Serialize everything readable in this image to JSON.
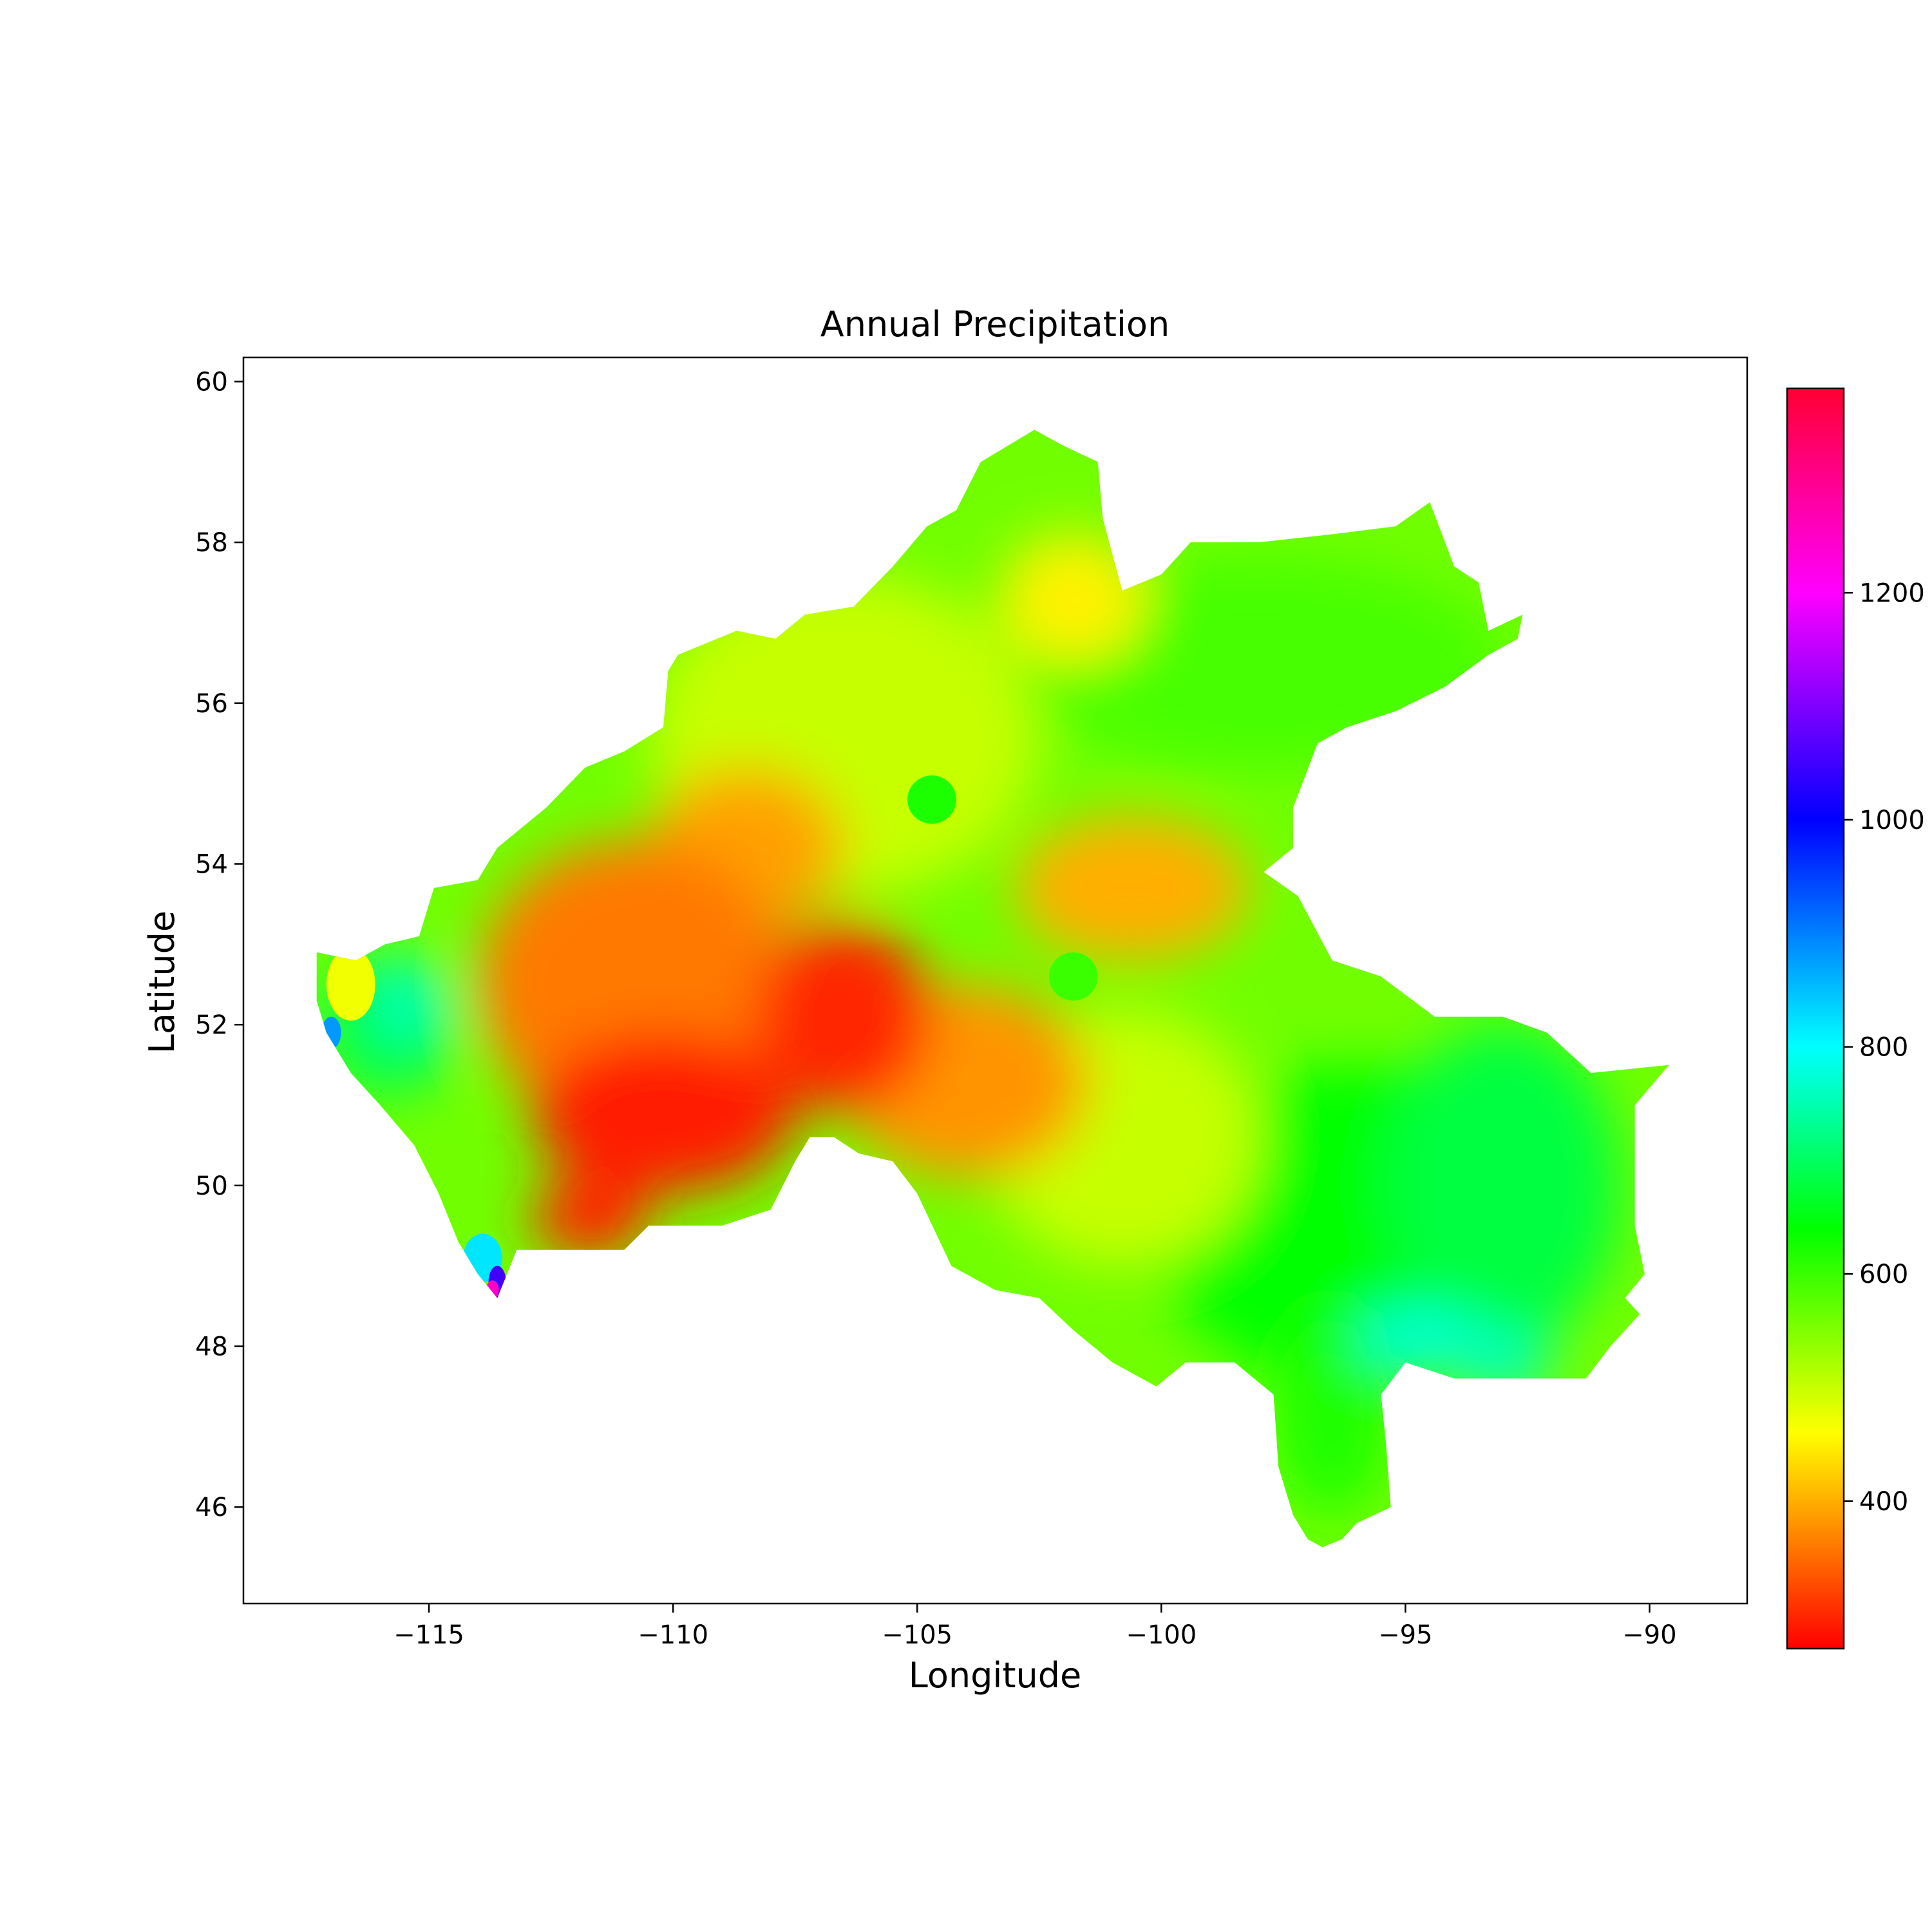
{
  "title": "Annual Precipitation",
  "chart_data": {
    "type": "heatmap",
    "title": "Annual Precipitation",
    "xlabel": "Longitude",
    "ylabel": "Latitude",
    "xlim": [
      -118.8,
      -88.0
    ],
    "ylim": [
      44.8,
      60.3
    ],
    "x_ticks": [
      -115,
      -110,
      -105,
      -100,
      -95,
      -90
    ],
    "x_tick_labels": [
      "−115",
      "−110",
      "−105",
      "−100",
      "−95",
      "−90"
    ],
    "y_ticks": [
      46,
      48,
      50,
      52,
      54,
      56,
      58,
      60
    ],
    "y_tick_labels": [
      "46",
      "48",
      "50",
      "52",
      "54",
      "56",
      "58",
      "60"
    ],
    "grid": false,
    "colorbar": {
      "range": [
        270,
        1380
      ],
      "ticks": [
        400,
        600,
        800,
        1000,
        1200
      ],
      "tick_labels": [
        "400",
        "600",
        "800",
        "1000",
        "1200"
      ],
      "stops": [
        {
          "value": 270,
          "color": "#ff0000"
        },
        {
          "value": 460,
          "color": "#ffff00"
        },
        {
          "value": 640,
          "color": "#00ff00"
        },
        {
          "value": 800,
          "color": "#00ffff"
        },
        {
          "value": 1000,
          "color": "#0000ff"
        },
        {
          "value": 1200,
          "color": "#ff00ff"
        },
        {
          "value": 1380,
          "color": "#ff0033"
        }
      ]
    },
    "region_boundary": [
      [
        -117.3,
        52.9
      ],
      [
        -116.5,
        52.8
      ],
      [
        -115.9,
        53.0
      ],
      [
        -115.2,
        53.1
      ],
      [
        -114.9,
        53.7
      ],
      [
        -114.0,
        53.8
      ],
      [
        -113.6,
        54.2
      ],
      [
        -112.6,
        54.7
      ],
      [
        -111.8,
        55.2
      ],
      [
        -111.0,
        55.4
      ],
      [
        -110.2,
        55.7
      ],
      [
        -110.1,
        56.4
      ],
      [
        -109.9,
        56.6
      ],
      [
        -108.7,
        56.9
      ],
      [
        -107.9,
        56.8
      ],
      [
        -107.3,
        57.1
      ],
      [
        -106.3,
        57.2
      ],
      [
        -105.5,
        57.7
      ],
      [
        -104.8,
        58.2
      ],
      [
        -104.2,
        58.4
      ],
      [
        -103.7,
        59.0
      ],
      [
        -102.6,
        59.4
      ],
      [
        -102.0,
        59.2
      ],
      [
        -101.3,
        59.0
      ],
      [
        -101.2,
        58.3
      ],
      [
        -100.8,
        57.4
      ],
      [
        -100.0,
        57.6
      ],
      [
        -99.4,
        58.0
      ],
      [
        -98.0,
        58.0
      ],
      [
        -96.5,
        58.1
      ],
      [
        -95.2,
        58.2
      ],
      [
        -94.5,
        58.5
      ],
      [
        -94.0,
        57.7
      ],
      [
        -93.5,
        57.5
      ],
      [
        -93.3,
        56.9
      ],
      [
        -92.6,
        57.1
      ],
      [
        -92.7,
        56.8
      ],
      [
        -93.3,
        56.6
      ],
      [
        -94.2,
        56.2
      ],
      [
        -95.2,
        55.9
      ],
      [
        -96.2,
        55.7
      ],
      [
        -96.8,
        55.5
      ],
      [
        -97.3,
        54.7
      ],
      [
        -97.3,
        54.2
      ],
      [
        -97.9,
        53.9
      ],
      [
        -97.2,
        53.6
      ],
      [
        -96.5,
        52.8
      ],
      [
        -95.5,
        52.6
      ],
      [
        -94.4,
        52.1
      ],
      [
        -93.0,
        52.1
      ],
      [
        -92.1,
        51.9
      ],
      [
        -91.2,
        51.4
      ],
      [
        -89.6,
        51.5
      ],
      [
        -90.3,
        51.0
      ],
      [
        -90.3,
        49.5
      ],
      [
        -90.1,
        48.9
      ],
      [
        -90.5,
        48.6
      ],
      [
        -90.2,
        48.4
      ],
      [
        -90.8,
        48.0
      ],
      [
        -91.3,
        47.6
      ],
      [
        -92.3,
        47.6
      ],
      [
        -93.2,
        47.6
      ],
      [
        -94.0,
        47.6
      ],
      [
        -95.0,
        47.8
      ],
      [
        -95.5,
        47.4
      ],
      [
        -95.4,
        46.8
      ],
      [
        -95.3,
        46.0
      ],
      [
        -96.0,
        45.8
      ],
      [
        -96.3,
        45.6
      ],
      [
        -96.7,
        45.5
      ],
      [
        -97.0,
        45.6
      ],
      [
        -97.3,
        45.9
      ],
      [
        -97.6,
        46.5
      ],
      [
        -97.7,
        47.4
      ],
      [
        -98.5,
        47.8
      ],
      [
        -99.5,
        47.8
      ],
      [
        -100.1,
        47.5
      ],
      [
        -101.0,
        47.8
      ],
      [
        -101.8,
        48.2
      ],
      [
        -102.5,
        48.6
      ],
      [
        -103.4,
        48.7
      ],
      [
        -104.3,
        49.0
      ],
      [
        -105.0,
        49.9
      ],
      [
        -105.5,
        50.3
      ],
      [
        -106.2,
        50.4
      ],
      [
        -106.7,
        50.6
      ],
      [
        -107.2,
        50.6
      ],
      [
        -107.5,
        50.3
      ],
      [
        -108.0,
        49.7
      ],
      [
        -109.0,
        49.5
      ],
      [
        -110.5,
        49.5
      ],
      [
        -111.0,
        49.2
      ],
      [
        -111.8,
        49.2
      ],
      [
        -112.5,
        49.2
      ],
      [
        -113.2,
        49.2
      ],
      [
        -113.6,
        48.6
      ],
      [
        -114.0,
        48.9
      ],
      [
        -114.4,
        49.3
      ],
      [
        -114.8,
        49.9
      ],
      [
        -115.3,
        50.5
      ],
      [
        -116.0,
        51.0
      ],
      [
        -116.6,
        51.4
      ],
      [
        -117.1,
        51.9
      ],
      [
        -117.3,
        52.3
      ]
    ],
    "precipitation_areas": [
      {
        "center": [
          -106.5,
          55.6
        ],
        "radius": [
          4.0,
          2.0
        ],
        "value": 500
      },
      {
        "center": [
          -98.0,
          56.5
        ],
        "radius": [
          5.0,
          1.3
        ],
        "value": 590
      },
      {
        "center": [
          -101.8,
          57.3
        ],
        "radius": [
          1.5,
          0.8
        ],
        "value": 450
      },
      {
        "center": [
          -96.0,
          49.5
        ],
        "radius": [
          4.2,
          2.0
        ],
        "value": 640
      },
      {
        "center": [
          -93.0,
          50.0
        ],
        "radius": [
          2.4,
          2.0
        ],
        "value": 680
      },
      {
        "center": [
          -96.5,
          47.2
        ],
        "radius": [
          1.2,
          1.3
        ],
        "value": 620
      },
      {
        "center": [
          -94.7,
          48.1
        ],
        "radius": [
          1.3,
          0.35
        ],
        "value": 780
      },
      {
        "center": [
          -93.0,
          47.8
        ],
        "radius": [
          1.0,
          0.4
        ],
        "value": 760
      },
      {
        "center": [
          -100.8,
          50.6
        ],
        "radius": [
          2.8,
          1.6
        ],
        "value": 500
      },
      {
        "center": [
          -104.0,
          51.3
        ],
        "radius": [
          2.5,
          1.2
        ],
        "value": 380
      },
      {
        "center": [
          -100.6,
          53.7
        ],
        "radius": [
          2.4,
          0.9
        ],
        "value": 400
      },
      {
        "center": [
          -108.5,
          54.2
        ],
        "radius": [
          2.0,
          1.0
        ],
        "value": 390
      },
      {
        "center": [
          -110.8,
          52.5
        ],
        "radius": [
          3.2,
          1.8
        ],
        "value": 360
      },
      {
        "center": [
          -110.2,
          50.9
        ],
        "radius": [
          2.7,
          1.0
        ],
        "value": 290
      },
      {
        "center": [
          -106.5,
          52.1
        ],
        "radius": [
          1.8,
          1.2
        ],
        "value": 300
      },
      {
        "center": [
          -111.7,
          49.6
        ],
        "radius": [
          1.2,
          0.5
        ],
        "value": 300
      },
      {
        "center": [
          -115.8,
          52.0
        ],
        "radius": [
          1.4,
          0.9
        ],
        "value": 690
      },
      {
        "center": [
          -115.4,
          52.3
        ],
        "radius": [
          0.7,
          0.5
        ],
        "value": 760
      },
      {
        "center": [
          -116.6,
          52.5
        ],
        "radius": [
          0.5,
          0.45
        ],
        "value": 470
      },
      {
        "center": [
          -104.7,
          54.8
        ],
        "radius": [
          0.5,
          0.3
        ],
        "value": 620
      },
      {
        "center": [
          -101.8,
          52.6
        ],
        "radius": [
          0.5,
          0.3
        ],
        "value": 600
      },
      {
        "center": [
          -113.9,
          49.1
        ],
        "radius": [
          0.4,
          0.3
        ],
        "value": 820
      },
      {
        "center": [
          -113.6,
          48.8
        ],
        "radius": [
          0.18,
          0.2
        ],
        "value": 1050
      },
      {
        "center": [
          -113.7,
          48.7
        ],
        "radius": [
          0.13,
          0.12
        ],
        "value": 1250
      },
      {
        "center": [
          -117.0,
          51.9
        ],
        "radius": [
          0.2,
          0.2
        ],
        "value": 880
      }
    ]
  }
}
